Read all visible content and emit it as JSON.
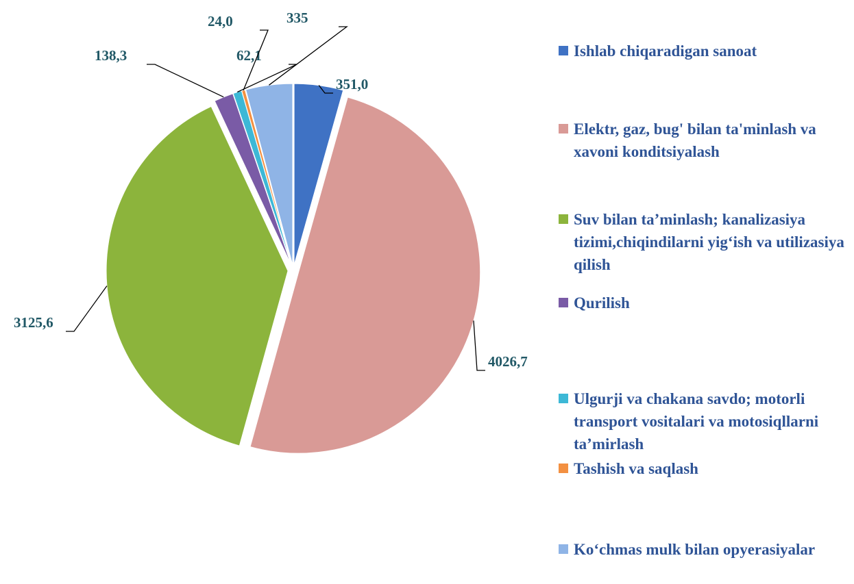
{
  "chart_data": {
    "type": "pie",
    "categories": [
      "Ishlab chiqaradigan sanoat",
      "Elektr, gaz, bug' bilan ta'minlash va xavoni konditsiyalash",
      "Suv bilan ta’minlash; kanalizasiya tizimi,chiqindilarni yig‘ish va utilizasiya qilish",
      "Qurilish",
      "Ulgurji va chakana savdo; motorli transport vositalari va motosiqllarni ta’mirlash",
      "Tashish va saqlash",
      "Ko‘chmas mulk bilan opyerasiyalar"
    ],
    "values": [
      351.0,
      4026.7,
      3125.6,
      138.3,
      62.1,
      24.0,
      335
    ],
    "value_labels": [
      "351,0",
      "4026,7",
      "3125,6",
      "138,3",
      "62,1",
      "24,0",
      "335"
    ],
    "colors": [
      "#3f72c4",
      "#d99a96",
      "#8cb43c",
      "#7a5ba6",
      "#3db8d6",
      "#f39041",
      "#8fb4e6"
    ],
    "legend": "right"
  }
}
